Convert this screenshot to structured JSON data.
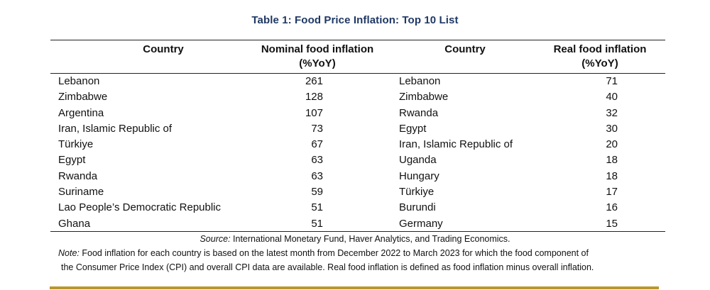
{
  "title": "Table 1: Food Price Inflation: Top 10 List",
  "headers": {
    "country1": "Country",
    "nominal_line1": "Nominal food inflation",
    "nominal_line2": "(%YoY)",
    "country2": "Country",
    "real_line1": "Real food inflation",
    "real_line2": "(%YoY)"
  },
  "rows": [
    {
      "country1": "Lebanon",
      "nominal": "261",
      "country2": "Lebanon",
      "real": "71"
    },
    {
      "country1": "Zimbabwe",
      "nominal": "128",
      "country2": "Zimbabwe",
      "real": "40"
    },
    {
      "country1": "Argentina",
      "nominal": "107",
      "country2": "Rwanda",
      "real": "32"
    },
    {
      "country1": "Iran, Islamic Republic of",
      "nominal": "73",
      "country2": "Egypt",
      "real": "30"
    },
    {
      "country1": "Türkiye",
      "nominal": "67",
      "country2": "Iran, Islamic Republic of",
      "real": "20"
    },
    {
      "country1": "Egypt",
      "nominal": "63",
      "country2": "Uganda",
      "real": "18"
    },
    {
      "country1": "Rwanda",
      "nominal": "63",
      "country2": "Hungary",
      "real": "18"
    },
    {
      "country1": "Suriname",
      "nominal": "59",
      "country2": "Türkiye",
      "real": "17"
    },
    {
      "country1": "Lao People’s Democratic Republic",
      "nominal": "51",
      "country2": "Burundi",
      "real": "16"
    },
    {
      "country1": "Ghana",
      "nominal": "51",
      "country2": "Germany",
      "real": "15"
    }
  ],
  "source": {
    "label": "Source:",
    "text": " International Monetary Fund, Haver Analytics, and Trading Economics."
  },
  "note": {
    "label": "Note:",
    "line1": " Food inflation for each country is based on the latest month from December 2022 to March 2023 for which the food component of",
    "line2": "the Consumer Price Index (CPI) and overall CPI data are available. Real food inflation is defined as food inflation minus overall inflation."
  },
  "colors": {
    "title": "#1f3864",
    "bottom_rule": "#b8972e"
  }
}
